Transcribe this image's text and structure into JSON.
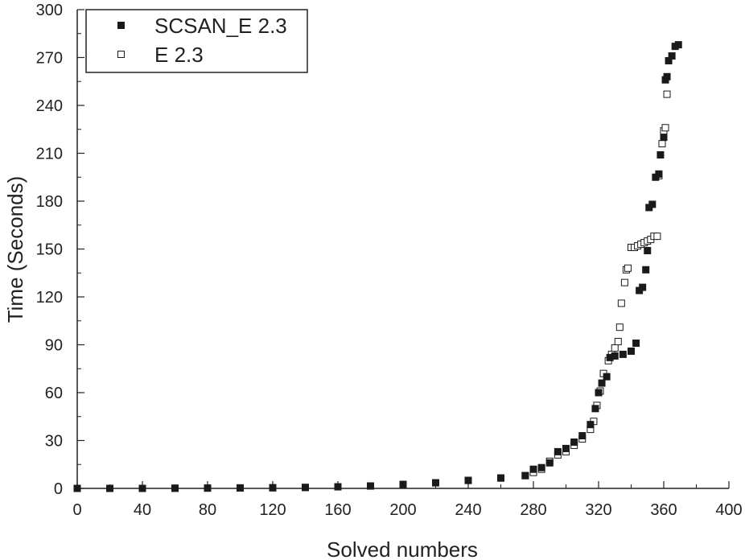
{
  "chart_data": {
    "type": "scatter",
    "xlabel": "Solved numbers",
    "ylabel": "Time (Seconds)",
    "xlim": [
      0,
      400
    ],
    "ylim": [
      0,
      300
    ],
    "xticks": [
      0,
      40,
      80,
      120,
      160,
      200,
      240,
      280,
      320,
      360,
      400
    ],
    "yticks": [
      0,
      30,
      60,
      90,
      120,
      150,
      180,
      210,
      240,
      270,
      300
    ],
    "grid": false,
    "legend_position": "top-left",
    "series": [
      {
        "name": "SCSAN_E 2.3",
        "marker": "filled-square",
        "color": "#1a1a1a",
        "points": [
          [
            0,
            0
          ],
          [
            20,
            0
          ],
          [
            40,
            0
          ],
          [
            60,
            0.1
          ],
          [
            80,
            0.2
          ],
          [
            100,
            0.3
          ],
          [
            120,
            0.4
          ],
          [
            140,
            0.6
          ],
          [
            160,
            1
          ],
          [
            180,
            1.5
          ],
          [
            200,
            2.5
          ],
          [
            220,
            3.5
          ],
          [
            240,
            5
          ],
          [
            260,
            6.5
          ],
          [
            275,
            8
          ],
          [
            280,
            12
          ],
          [
            285,
            13
          ],
          [
            290,
            16
          ],
          [
            295,
            23
          ],
          [
            300,
            25
          ],
          [
            305,
            29
          ],
          [
            310,
            33
          ],
          [
            315,
            40
          ],
          [
            318,
            50
          ],
          [
            320,
            60
          ],
          [
            322,
            66
          ],
          [
            325,
            70
          ],
          [
            327,
            82
          ],
          [
            330,
            83
          ],
          [
            335,
            84
          ],
          [
            340,
            86
          ],
          [
            343,
            91
          ],
          [
            345,
            124
          ],
          [
            347,
            126
          ],
          [
            349,
            137
          ],
          [
            350,
            149
          ],
          [
            351,
            176
          ],
          [
            353,
            178
          ],
          [
            355,
            195
          ],
          [
            357,
            197
          ],
          [
            358,
            209
          ],
          [
            360,
            220
          ],
          [
            361,
            256
          ],
          [
            362,
            258
          ],
          [
            363,
            268
          ],
          [
            365,
            271
          ],
          [
            367,
            277
          ],
          [
            369,
            278
          ]
        ]
      },
      {
        "name": "E 2.3",
        "marker": "open-square",
        "color": "#1a1a1a",
        "points": [
          [
            0,
            0
          ],
          [
            20,
            0
          ],
          [
            40,
            0
          ],
          [
            60,
            0.1
          ],
          [
            80,
            0.2
          ],
          [
            100,
            0.3
          ],
          [
            120,
            0.4
          ],
          [
            140,
            0.6
          ],
          [
            160,
            1
          ],
          [
            180,
            1.5
          ],
          [
            200,
            2.5
          ],
          [
            220,
            3.5
          ],
          [
            240,
            5
          ],
          [
            260,
            6.5
          ],
          [
            275,
            8
          ],
          [
            280,
            10
          ],
          [
            285,
            12
          ],
          [
            290,
            17
          ],
          [
            295,
            21
          ],
          [
            300,
            23
          ],
          [
            305,
            27
          ],
          [
            310,
            31
          ],
          [
            315,
            37
          ],
          [
            317,
            42
          ],
          [
            319,
            52
          ],
          [
            321,
            61
          ],
          [
            323,
            72
          ],
          [
            326,
            80
          ],
          [
            328,
            84
          ],
          [
            330,
            88
          ],
          [
            332,
            92
          ],
          [
            333,
            101
          ],
          [
            334,
            116
          ],
          [
            336,
            129
          ],
          [
            337,
            137
          ],
          [
            338,
            138
          ],
          [
            340,
            151
          ],
          [
            342,
            151
          ],
          [
            344,
            152
          ],
          [
            346,
            153
          ],
          [
            348,
            154
          ],
          [
            350,
            155
          ],
          [
            352,
            156
          ],
          [
            354,
            158
          ],
          [
            356,
            158
          ],
          [
            357,
            196
          ],
          [
            359,
            216
          ],
          [
            360,
            224
          ],
          [
            361,
            226
          ],
          [
            362,
            247
          ]
        ]
      }
    ]
  }
}
